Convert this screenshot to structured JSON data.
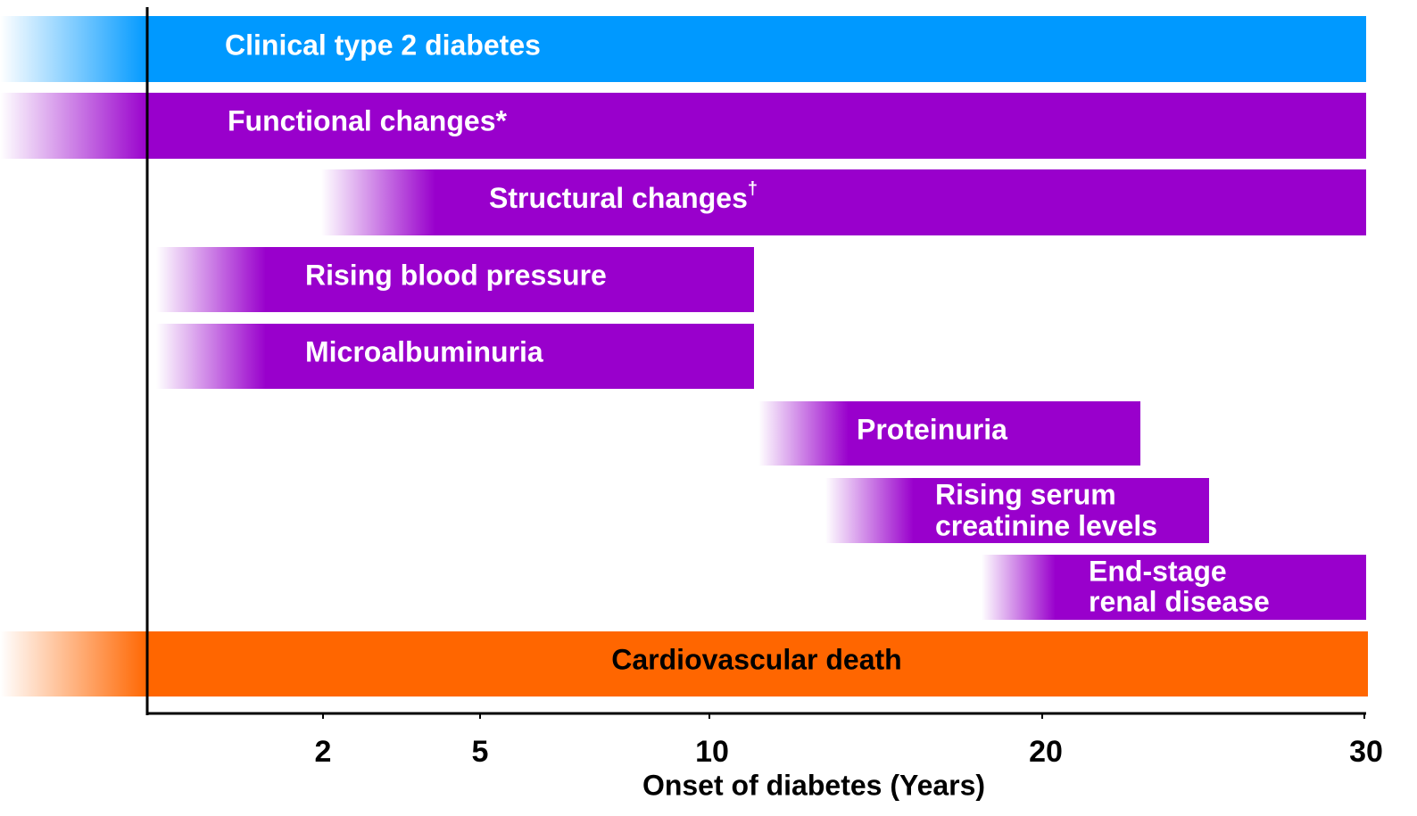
{
  "bars": [
    {
      "label": "Clinical type 2 diabetes"
    },
    {
      "label": "Functional changes*"
    },
    {
      "label": "Structural changes",
      "mark": "†"
    },
    {
      "label": "Rising blood pressure"
    },
    {
      "label": "Microalbuminuria"
    },
    {
      "label": "Proteinuria"
    },
    {
      "label": "Rising serum",
      "label2": "creatinine levels"
    },
    {
      "label": "End-stage",
      "label2": "renal disease"
    },
    {
      "label": "Cardiovascular death"
    }
  ],
  "axis": {
    "ticks": [
      "2",
      "5",
      "10",
      "20",
      "30"
    ],
    "title": "Onset of diabetes (Years)"
  }
}
